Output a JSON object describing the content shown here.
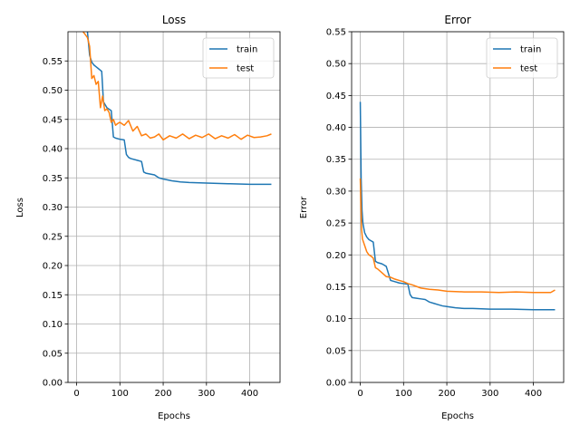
{
  "chart_data": [
    {
      "type": "line",
      "title": "Loss",
      "xlabel": "Epochs",
      "ylabel": "Loss",
      "xlim": [
        -20,
        470
      ],
      "ylim": [
        0.0,
        0.6
      ],
      "xticks": [
        0,
        100,
        200,
        300,
        400
      ],
      "yticks": [
        0.0,
        0.05,
        0.1,
        0.15,
        0.2,
        0.25,
        0.3,
        0.35,
        0.4,
        0.45,
        0.5,
        0.55
      ],
      "ytick_labels": [
        "0.00",
        "0.05",
        "0.10",
        "0.15",
        "0.20",
        "0.25",
        "0.30",
        "0.35",
        "0.40",
        "0.45",
        "0.50",
        "0.55"
      ],
      "grid": true,
      "legend_position": "top-right",
      "series": [
        {
          "name": "train",
          "color": "#1f77b4",
          "x": [
            25,
            30,
            35,
            40,
            45,
            50,
            55,
            58,
            62,
            70,
            80,
            85,
            90,
            100,
            110,
            115,
            120,
            125,
            140,
            150,
            155,
            160,
            180,
            190,
            200,
            220,
            240,
            260,
            300,
            350,
            400,
            450
          ],
          "y": [
            0.6,
            0.56,
            0.548,
            0.543,
            0.54,
            0.537,
            0.534,
            0.532,
            0.48,
            0.47,
            0.465,
            0.42,
            0.418,
            0.416,
            0.415,
            0.39,
            0.385,
            0.383,
            0.38,
            0.378,
            0.36,
            0.358,
            0.355,
            0.35,
            0.348,
            0.345,
            0.343,
            0.342,
            0.341,
            0.34,
            0.339,
            0.339
          ]
        },
        {
          "name": "test",
          "color": "#ff7f0e",
          "x": [
            15,
            20,
            25,
            30,
            35,
            40,
            45,
            50,
            55,
            60,
            65,
            70,
            75,
            80,
            85,
            90,
            95,
            100,
            110,
            120,
            130,
            140,
            150,
            160,
            170,
            180,
            190,
            200,
            215,
            230,
            245,
            260,
            275,
            290,
            305,
            320,
            335,
            350,
            365,
            380,
            395,
            410,
            425,
            440,
            450
          ],
          "y": [
            0.6,
            0.595,
            0.59,
            0.575,
            0.52,
            0.525,
            0.51,
            0.515,
            0.47,
            0.49,
            0.465,
            0.468,
            0.462,
            0.445,
            0.45,
            0.44,
            0.443,
            0.445,
            0.44,
            0.448,
            0.43,
            0.438,
            0.422,
            0.425,
            0.418,
            0.42,
            0.425,
            0.415,
            0.422,
            0.418,
            0.425,
            0.417,
            0.423,
            0.419,
            0.425,
            0.417,
            0.422,
            0.418,
            0.424,
            0.416,
            0.423,
            0.419,
            0.42,
            0.422,
            0.425
          ]
        }
      ]
    },
    {
      "type": "line",
      "title": "Error",
      "xlabel": "Epochs",
      "ylabel": "Error",
      "xlim": [
        -20,
        470
      ],
      "ylim": [
        0.0,
        0.55
      ],
      "xticks": [
        0,
        100,
        200,
        300,
        400
      ],
      "yticks": [
        0.0,
        0.05,
        0.1,
        0.15,
        0.2,
        0.25,
        0.3,
        0.35,
        0.4,
        0.45,
        0.5,
        0.55
      ],
      "ytick_labels": [
        "0.00",
        "0.05",
        "0.10",
        "0.15",
        "0.20",
        "0.25",
        "0.30",
        "0.35",
        "0.40",
        "0.45",
        "0.50",
        "0.55"
      ],
      "grid": true,
      "legend_position": "top-right",
      "series": [
        {
          "name": "train",
          "color": "#1f77b4",
          "x": [
            0,
            2,
            4,
            6,
            10,
            15,
            20,
            25,
            30,
            35,
            40,
            50,
            55,
            60,
            70,
            80,
            90,
            100,
            110,
            115,
            120,
            130,
            140,
            150,
            160,
            170,
            180,
            190,
            200,
            220,
            240,
            260,
            300,
            350,
            400,
            450
          ],
          "y": [
            0.44,
            0.32,
            0.27,
            0.25,
            0.235,
            0.228,
            0.224,
            0.222,
            0.22,
            0.19,
            0.188,
            0.186,
            0.184,
            0.182,
            0.16,
            0.158,
            0.156,
            0.155,
            0.154,
            0.138,
            0.133,
            0.132,
            0.131,
            0.13,
            0.126,
            0.124,
            0.122,
            0.12,
            0.119,
            0.117,
            0.116,
            0.116,
            0.115,
            0.115,
            0.114,
            0.114
          ]
        },
        {
          "name": "test",
          "color": "#ff7f0e",
          "x": [
            0,
            3,
            5,
            10,
            15,
            20,
            25,
            30,
            35,
            40,
            50,
            60,
            70,
            80,
            90,
            100,
            110,
            120,
            140,
            160,
            180,
            200,
            240,
            280,
            320,
            360,
            400,
            440,
            450
          ],
          "y": [
            0.32,
            0.24,
            0.225,
            0.215,
            0.205,
            0.2,
            0.198,
            0.195,
            0.18,
            0.178,
            0.172,
            0.166,
            0.165,
            0.162,
            0.16,
            0.158,
            0.155,
            0.153,
            0.148,
            0.146,
            0.145,
            0.143,
            0.142,
            0.142,
            0.141,
            0.142,
            0.141,
            0.141,
            0.145
          ]
        }
      ]
    }
  ]
}
